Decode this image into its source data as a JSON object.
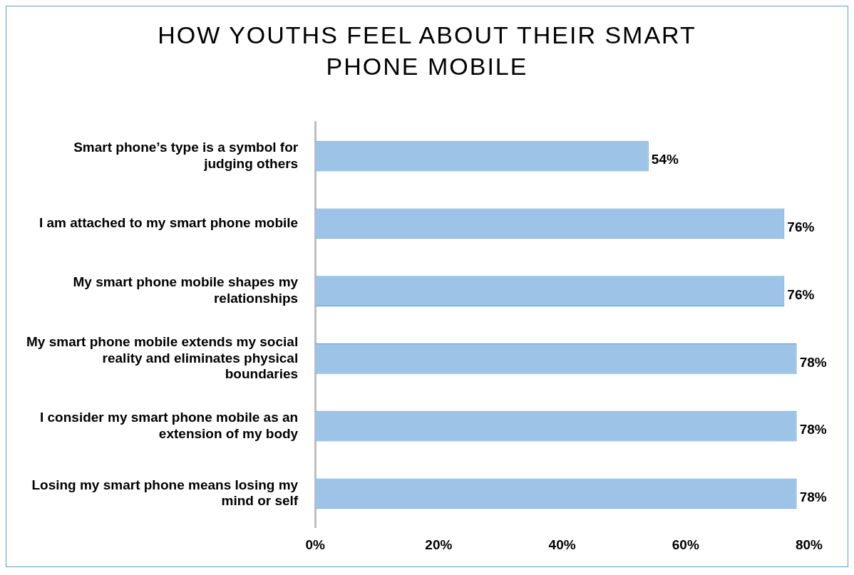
{
  "chart_data": {
    "type": "bar",
    "orientation": "horizontal",
    "title": "HOW YOUTHS FEEL ABOUT THEIR SMART PHONE MOBILE",
    "categories": [
      "Smart phone’s type is a symbol for judging others",
      "I am attached to my smart phone mobile",
      "My smart phone mobile shapes my relationships",
      "My smart phone mobile extends my social reality and eliminates physical boundaries",
      "I consider my smart phone mobile as an extension of my body",
      "Losing my smart phone means losing my mind or self"
    ],
    "values": [
      54,
      76,
      76,
      78,
      78,
      78
    ],
    "value_labels": [
      "54%",
      "76%",
      "76%",
      "78%",
      "78%",
      "78%"
    ],
    "color": "#9dc3e6",
    "xlim": [
      0,
      80
    ],
    "xticks": [
      {
        "value": 0,
        "label": "0%"
      },
      {
        "value": 20,
        "label": "20%"
      },
      {
        "value": 40,
        "label": "40%"
      },
      {
        "value": 60,
        "label": "60%"
      },
      {
        "value": 80,
        "label": "80%"
      }
    ],
    "grid": false,
    "legend": false
  }
}
